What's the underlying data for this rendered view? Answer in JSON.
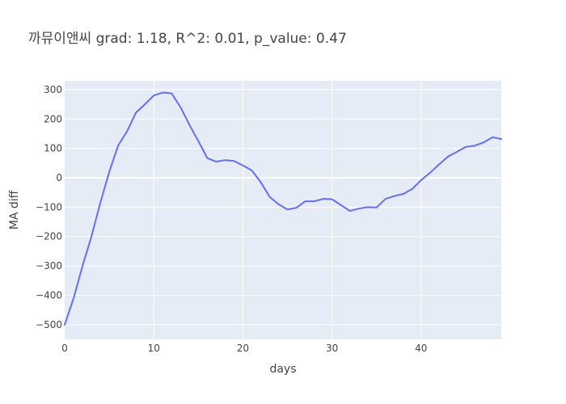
{
  "chart_data": {
    "type": "line",
    "title": "까뮤이앤씨 grad: 1.18, R^2: 0.01, p_value: 0.47",
    "xlabel": "days",
    "ylabel": "MA diff",
    "xlim": [
      0,
      49
    ],
    "ylim": [
      -550,
      330
    ],
    "x_ticks": [
      0,
      10,
      20,
      30,
      40
    ],
    "y_ticks": [
      300,
      200,
      100,
      0,
      -100,
      -200,
      -300,
      -400,
      -500
    ],
    "grid": true,
    "colors": {
      "plot_bg": "#E5ECF6",
      "grid": "#ffffff",
      "line": "#636EFA",
      "text": "#444444"
    },
    "series": [
      {
        "x": [
          0,
          1,
          2,
          3,
          4,
          5,
          6,
          7,
          8,
          9,
          10,
          11,
          12,
          13,
          14,
          15,
          16,
          17,
          18,
          19,
          20,
          21,
          22,
          23,
          24,
          25,
          26,
          27,
          28,
          29,
          30,
          31,
          32,
          33,
          34,
          35,
          36,
          37,
          38,
          39,
          40,
          41,
          42,
          43,
          44,
          45,
          46,
          47,
          48,
          49
        ],
        "values": [
          -500,
          -410,
          -300,
          -200,
          -85,
          20,
          110,
          158,
          222,
          250,
          280,
          290,
          287,
          240,
          180,
          125,
          67,
          55,
          60,
          57,
          42,
          25,
          -15,
          -65,
          -90,
          -108,
          -102,
          -80,
          -80,
          -72,
          -73,
          -93,
          -113,
          -105,
          -100,
          -101,
          -72,
          -62,
          -55,
          -38,
          -8,
          17,
          45,
          72,
          88,
          105,
          109,
          120,
          138,
          132
        ]
      }
    ]
  }
}
